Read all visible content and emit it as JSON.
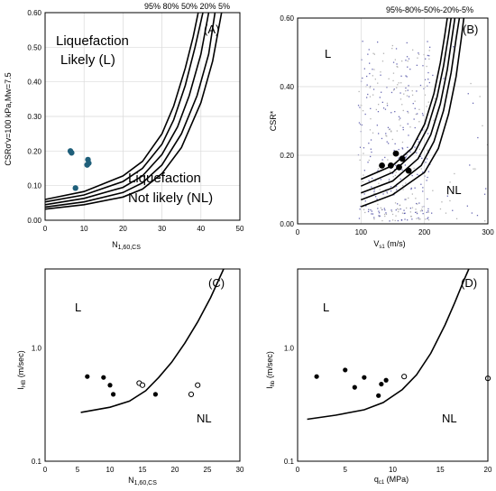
{
  "chart_data": [
    {
      "id": "A",
      "type": "line",
      "panel_label": "(A)",
      "curve_labels": "95% 80% 50% 20% 5%",
      "xlabel_main": "N",
      "xlabel_sub": "1,60,CS",
      "ylabel": "CSRσ'v=100 kPa,Mw=7.5",
      "xlim": [
        0,
        50
      ],
      "ylim": [
        0,
        0.6
      ],
      "xticks": [
        0,
        10,
        20,
        30,
        40,
        50
      ],
      "yticks": [
        0.0,
        0.1,
        0.2,
        0.3,
        0.4,
        0.5,
        0.6
      ],
      "ytick_labels": [
        "0.00",
        "0.10",
        "0.20",
        "0.30",
        "0.40",
        "0.50",
        "0.60"
      ],
      "region_L": [
        "Liquefaction",
        "Likely (L)"
      ],
      "region_NL": [
        "Liquefaction",
        "Not likely (NL)"
      ],
      "curves": [
        {
          "name": "95%",
          "points": [
            [
              0,
              0.06
            ],
            [
              10,
              0.083
            ],
            [
              20,
              0.128
            ],
            [
              25,
              0.17
            ],
            [
              30,
              0.25
            ],
            [
              33,
              0.33
            ],
            [
              36,
              0.44
            ],
            [
              38,
              0.53
            ],
            [
              39.3,
              0.6
            ]
          ]
        },
        {
          "name": "80%",
          "points": [
            [
              0,
              0.053
            ],
            [
              10,
              0.073
            ],
            [
              20,
              0.112
            ],
            [
              25,
              0.15
            ],
            [
              30,
              0.22
            ],
            [
              33,
              0.29
            ],
            [
              36,
              0.39
            ],
            [
              38.5,
              0.5
            ],
            [
              40.5,
              0.6
            ]
          ]
        },
        {
          "name": "50%",
          "points": [
            [
              0,
              0.045
            ],
            [
              10,
              0.063
            ],
            [
              20,
              0.095
            ],
            [
              25,
              0.128
            ],
            [
              30,
              0.19
            ],
            [
              34,
              0.27
            ],
            [
              37,
              0.36
            ],
            [
              40,
              0.48
            ],
            [
              42,
              0.6
            ]
          ]
        },
        {
          "name": "20%",
          "points": [
            [
              0,
              0.038
            ],
            [
              10,
              0.053
            ],
            [
              20,
              0.08
            ],
            [
              25,
              0.108
            ],
            [
              30,
              0.16
            ],
            [
              35,
              0.25
            ],
            [
              39,
              0.36
            ],
            [
              42,
              0.48
            ],
            [
              43.6,
              0.6
            ]
          ]
        },
        {
          "name": "5%",
          "points": [
            [
              0,
              0.032
            ],
            [
              10,
              0.045
            ],
            [
              20,
              0.067
            ],
            [
              25,
              0.09
            ],
            [
              30,
              0.135
            ],
            [
              35,
              0.21
            ],
            [
              40,
              0.34
            ],
            [
              43,
              0.46
            ],
            [
              45.3,
              0.6
            ]
          ]
        }
      ],
      "points": [
        [
          6.5,
          0.2
        ],
        [
          6.8,
          0.195
        ],
        [
          11,
          0.175
        ],
        [
          11.2,
          0.165
        ],
        [
          10.8,
          0.16
        ],
        [
          7.8,
          0.093
        ]
      ],
      "marker_color": "#1f5f7a"
    },
    {
      "id": "B",
      "type": "scatter",
      "panel_label": "(B)",
      "curve_labels": "95%-80%-50%-20%-5%",
      "xlabel_main": "V",
      "xlabel_sub": "s1",
      "xlabel_unit": " (m/s)",
      "ylabel": "CSR*",
      "xlim": [
        0,
        300
      ],
      "ylim": [
        0,
        0.6
      ],
      "xticks": [
        0,
        100,
        200,
        300
      ],
      "yticks": [
        0.0,
        0.2,
        0.4,
        0.6
      ],
      "ytick_labels": [
        "0.00",
        "0.20",
        "0.40",
        "0.60"
      ],
      "region_L": "L",
      "region_NL": "NL",
      "curves": [
        {
          "name": "95%",
          "points": [
            [
              100,
              0.13
            ],
            [
              150,
              0.17
            ],
            [
              180,
              0.22
            ],
            [
              200,
              0.29
            ],
            [
              215,
              0.38
            ],
            [
              225,
              0.47
            ],
            [
              232,
              0.55
            ],
            [
              236,
              0.6
            ]
          ]
        },
        {
          "name": "80%",
          "points": [
            [
              100,
              0.11
            ],
            [
              150,
              0.15
            ],
            [
              185,
              0.21
            ],
            [
              205,
              0.28
            ],
            [
              220,
              0.37
            ],
            [
              230,
              0.46
            ],
            [
              238,
              0.55
            ],
            [
              242,
              0.6
            ]
          ]
        },
        {
          "name": "50%",
          "points": [
            [
              100,
              0.09
            ],
            [
              150,
              0.125
            ],
            [
              190,
              0.19
            ],
            [
              210,
              0.26
            ],
            [
              225,
              0.35
            ],
            [
              236,
              0.45
            ],
            [
              244,
              0.55
            ],
            [
              248,
              0.6
            ]
          ]
        },
        {
          "name": "20%",
          "points": [
            [
              100,
              0.07
            ],
            [
              150,
              0.105
            ],
            [
              195,
              0.17
            ],
            [
              215,
              0.24
            ],
            [
              230,
              0.33
            ],
            [
              242,
              0.44
            ],
            [
              250,
              0.54
            ],
            [
              255,
              0.6
            ]
          ]
        },
        {
          "name": "5%",
          "points": [
            [
              100,
              0.05
            ],
            [
              150,
              0.085
            ],
            [
              200,
              0.15
            ],
            [
              222,
              0.22
            ],
            [
              238,
              0.32
            ],
            [
              250,
              0.43
            ],
            [
              258,
              0.54
            ],
            [
              262,
              0.6
            ]
          ]
        }
      ],
      "points": [
        [
          133,
          0.17
        ],
        [
          147,
          0.17
        ],
        [
          155,
          0.205
        ],
        [
          160,
          0.165
        ],
        [
          165,
          0.19
        ],
        [
          175,
          0.155
        ]
      ],
      "marker_color": "#000000",
      "background_color": "#3a3a9a"
    },
    {
      "id": "C",
      "type": "scatter",
      "panel_label": "(C)",
      "xlabel_main": "N",
      "xlabel_sub": "1,60,CS",
      "ylabel_main": "I",
      "ylabel_sub": "HB",
      "ylabel_unit": " (m/sec)",
      "xlim": [
        0,
        30
      ],
      "ylim": [
        0.1,
        5
      ],
      "yscale": "log",
      "xticks": [
        0,
        5,
        10,
        15,
        20,
        25,
        30
      ],
      "yticks": [
        0.1,
        1.0
      ],
      "ytick_labels": [
        "0.1",
        "1.0"
      ],
      "region_L": "L",
      "region_NL": "NL",
      "curve": [
        [
          5.5,
          0.27
        ],
        [
          10,
          0.3
        ],
        [
          13,
          0.34
        ],
        [
          15.5,
          0.42
        ],
        [
          17.5,
          0.55
        ],
        [
          19.5,
          0.75
        ],
        [
          21.5,
          1.1
        ],
        [
          23.5,
          1.7
        ],
        [
          25.5,
          2.8
        ],
        [
          27.5,
          5
        ]
      ],
      "filled_points": [
        [
          6.5,
          0.56
        ],
        [
          9,
          0.55
        ],
        [
          10,
          0.47
        ],
        [
          10.5,
          0.39
        ],
        [
          17,
          0.39
        ]
      ],
      "open_points": [
        [
          14.5,
          0.49
        ],
        [
          15,
          0.47
        ],
        [
          22.5,
          0.39
        ],
        [
          23.5,
          0.47
        ]
      ]
    },
    {
      "id": "D",
      "type": "scatter",
      "panel_label": "(D)",
      "xlabel_main": "q",
      "xlabel_sub": "c1",
      "xlabel_unit": " (MPa)",
      "ylabel_main": "I",
      "ylabel_sub": "hb",
      "ylabel_unit": " (m/sec)",
      "xlim": [
        0,
        20
      ],
      "ylim": [
        0.1,
        5
      ],
      "yscale": "log",
      "xticks": [
        0,
        5,
        10,
        15,
        20
      ],
      "yticks": [
        0.1,
        1.0
      ],
      "ytick_labels": [
        "0.1",
        "1.0"
      ],
      "region_L": "L",
      "region_NL": "NL",
      "curve": [
        [
          1,
          0.235
        ],
        [
          4,
          0.255
        ],
        [
          7,
          0.285
        ],
        [
          9,
          0.33
        ],
        [
          11,
          0.43
        ],
        [
          12.5,
          0.58
        ],
        [
          14,
          0.9
        ],
        [
          15.5,
          1.6
        ],
        [
          16.5,
          2.5
        ],
        [
          17.5,
          4
        ],
        [
          18,
          5
        ]
      ],
      "filled_points": [
        [
          2,
          0.56
        ],
        [
          5,
          0.64
        ],
        [
          6,
          0.45
        ],
        [
          7,
          0.55
        ],
        [
          8.5,
          0.38
        ],
        [
          8.8,
          0.48
        ],
        [
          9.3,
          0.52
        ]
      ],
      "open_points": [
        [
          11.2,
          0.56
        ],
        [
          20,
          0.54
        ]
      ]
    }
  ]
}
